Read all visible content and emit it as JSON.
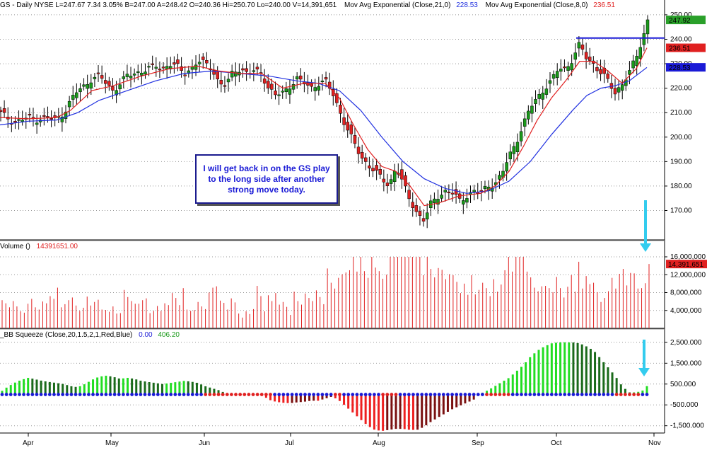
{
  "header": {
    "price_text": "GS - Daily  NYSE  L=247.67  7.34  3.05%  B=247.00  A=248.42  O=240.36  Hi=250.70  Lo=240.00  V=14,391,651",
    "ema21_label": "Mov Avg Exponential (Close,21,0)",
    "ema21_value": "228.53",
    "ema8_label": "Mov Avg Exponential (Close,8,0)",
    "ema8_value": "236.51"
  },
  "volume_header": {
    "label": "Volume ()",
    "value": "14391651.00"
  },
  "squeeze_header": {
    "label": "_BB Squeeze (Close,20,1.5,2,1,Red,Blue)",
    "value1": "0.00",
    "value2": "406.20"
  },
  "note": "I will get back in on the GS play to the long side after another strong move today.",
  "colors": {
    "up": "#1a9a1a",
    "down": "#e02020",
    "ema8": "#e02020",
    "ema21": "#2030e0",
    "squeeze_on": "#e02020",
    "squeeze_off": "#1a1ad6",
    "arrow": "#33ccee"
  },
  "chart_data": [
    {
      "type": "candlestick",
      "title": "GS - Daily NYSE",
      "x_labels": [
        "Apr",
        "May",
        "Jun",
        "Jul",
        "Aug",
        "Sep",
        "Oct",
        "Nov"
      ],
      "ylim": [
        158,
        252
      ],
      "y_ticks": [
        "250.00",
        "240.00",
        "230.00",
        "220.00",
        "210.00",
        "200.00",
        "190.00",
        "180.00",
        "170.00"
      ],
      "horizontal_line": 240.5,
      "last_price": "247.92",
      "series": [
        {
          "name": "Mov Avg Exponential (Close,8,0)",
          "last": "236.51"
        },
        {
          "name": "Mov Avg Exponential (Close,21,0)",
          "last": "228.53"
        }
      ],
      "close_path": [
        [
          0,
          210
        ],
        [
          10,
          208
        ],
        [
          20,
          206
        ],
        [
          30,
          207
        ],
        [
          40,
          208
        ],
        [
          50,
          207
        ],
        [
          60,
          208
        ],
        [
          70,
          208
        ],
        [
          80,
          207
        ],
        [
          90,
          210
        ],
        [
          100,
          215
        ],
        [
          110,
          219
        ],
        [
          120,
          221
        ],
        [
          130,
          224
        ],
        [
          140,
          225
        ],
        [
          150,
          222
        ],
        [
          160,
          219
        ],
        [
          170,
          222
        ],
        [
          180,
          225
        ],
        [
          190,
          226
        ],
        [
          200,
          227
        ],
        [
          210,
          228
        ],
        [
          220,
          229
        ],
        [
          230,
          228
        ],
        [
          240,
          230
        ],
        [
          250,
          229
        ],
        [
          260,
          226
        ],
        [
          270,
          228
        ],
        [
          280,
          231
        ],
        [
          290,
          230
        ],
        [
          300,
          228
        ],
        [
          310,
          222
        ],
        [
          320,
          221
        ],
        [
          330,
          227
        ],
        [
          340,
          228
        ],
        [
          350,
          226
        ],
        [
          360,
          227
        ],
        [
          370,
          226
        ],
        [
          380,
          220
        ],
        [
          390,
          217
        ],
        [
          400,
          218
        ],
        [
          410,
          221
        ],
        [
          420,
          224
        ],
        [
          430,
          222
        ],
        [
          440,
          220
        ],
        [
          450,
          222
        ],
        [
          460,
          223
        ],
        [
          470,
          218
        ],
        [
          480,
          211
        ],
        [
          490,
          204
        ],
        [
          500,
          198
        ],
        [
          510,
          192
        ],
        [
          520,
          189
        ],
        [
          530,
          186
        ],
        [
          540,
          183
        ],
        [
          550,
          180
        ],
        [
          560,
          188
        ],
        [
          570,
          181
        ],
        [
          580,
          174
        ],
        [
          590,
          169
        ],
        [
          600,
          166
        ],
        [
          610,
          173
        ],
        [
          620,
          176
        ],
        [
          630,
          178
        ],
        [
          640,
          177
        ],
        [
          650,
          174
        ],
        [
          660,
          176
        ],
        [
          670,
          178
        ],
        [
          680,
          177
        ],
        [
          690,
          180
        ],
        [
          700,
          181
        ],
        [
          710,
          185
        ],
        [
          720,
          192
        ],
        [
          730,
          198
        ],
        [
          740,
          205
        ],
        [
          750,
          212
        ],
        [
          760,
          216
        ],
        [
          770,
          220
        ],
        [
          780,
          223
        ],
        [
          790,
          228
        ],
        [
          800,
          228
        ],
        [
          810,
          232
        ],
        [
          820,
          238
        ],
        [
          830,
          232
        ],
        [
          840,
          230
        ],
        [
          850,
          226
        ],
        [
          860,
          223
        ],
        [
          870,
          218
        ],
        [
          880,
          222
        ],
        [
          890,
          226
        ],
        [
          900,
          233
        ],
        [
          910,
          241
        ],
        [
          915,
          248
        ]
      ],
      "ema8_path": [
        [
          0,
          208
        ],
        [
          40,
          207.5
        ],
        [
          80,
          208
        ],
        [
          100,
          211
        ],
        [
          130,
          219
        ],
        [
          160,
          221
        ],
        [
          200,
          225
        ],
        [
          240,
          228
        ],
        [
          280,
          229
        ],
        [
          310,
          227
        ],
        [
          340,
          226
        ],
        [
          370,
          226
        ],
        [
          400,
          220
        ],
        [
          430,
          222
        ],
        [
          460,
          222
        ],
        [
          480,
          216
        ],
        [
          500,
          205
        ],
        [
          520,
          195
        ],
        [
          540,
          188
        ],
        [
          560,
          186
        ],
        [
          580,
          180
        ],
        [
          600,
          172
        ],
        [
          620,
          173
        ],
        [
          650,
          176
        ],
        [
          680,
          177
        ],
        [
          700,
          180
        ],
        [
          720,
          186
        ],
        [
          740,
          196
        ],
        [
          760,
          207
        ],
        [
          780,
          216
        ],
        [
          800,
          223
        ],
        [
          820,
          231
        ],
        [
          840,
          231
        ],
        [
          860,
          227
        ],
        [
          880,
          222
        ],
        [
          900,
          228
        ],
        [
          915,
          236.5
        ]
      ],
      "ema21_path": [
        [
          0,
          205
        ],
        [
          40,
          206.5
        ],
        [
          80,
          207
        ],
        [
          110,
          210
        ],
        [
          140,
          215
        ],
        [
          180,
          219
        ],
        [
          220,
          223
        ],
        [
          260,
          226
        ],
        [
          300,
          227
        ],
        [
          340,
          226
        ],
        [
          380,
          225
        ],
        [
          420,
          223
        ],
        [
          450,
          222
        ],
        [
          480,
          219
        ],
        [
          510,
          211
        ],
        [
          540,
          200
        ],
        [
          570,
          190
        ],
        [
          600,
          183
        ],
        [
          630,
          179
        ],
        [
          660,
          177
        ],
        [
          690,
          178
        ],
        [
          720,
          182
        ],
        [
          750,
          190
        ],
        [
          780,
          201
        ],
        [
          810,
          211
        ],
        [
          830,
          217
        ],
        [
          850,
          220
        ],
        [
          870,
          221
        ],
        [
          890,
          223
        ],
        [
          915,
          228.5
        ]
      ]
    },
    {
      "type": "bar",
      "title": "Volume ()",
      "ylim": [
        0,
        16000000
      ],
      "y_ticks": [
        "16,000,000",
        "12,000,000",
        "8,000,000",
        "4,000,000"
      ],
      "last_value": "14,391,651",
      "values_millions": [
        6.3,
        5.6,
        4.7,
        6.1,
        4.9,
        3.8,
        3.5,
        5.5,
        6.6,
        4.7,
        4.2,
        6.0,
        5.6,
        7.2,
        6.6,
        9.1,
        4.7,
        5.4,
        6.3,
        6.9,
        5.1,
        3.9,
        4.6,
        7.1,
        5.1,
        5.9,
        6.4,
        4.2,
        4.1,
        3.7,
        4.9,
        3.3,
        3.4,
        8.6,
        7.0,
        6.1,
        5.5,
        5.5,
        6.3,
        6.7,
        3.4,
        3.9,
        5.0,
        3.9,
        5.6,
        5.2,
        7.9,
        6.8,
        5.2,
        9.0,
        4.2,
        3.9,
        4.1,
        5.9,
        4.9,
        4.3,
        8.0,
        9.1,
        9.4,
        6.2,
        5.7,
        4.2,
        6.7,
        5.8,
        3.3,
        2.4,
        3.8,
        3.2,
        4.3,
        9.5,
        7.2,
        3.8,
        7.4,
        6.1,
        7.9,
        5.3,
        5.9,
        4.8,
        3.0,
        8.2,
        6.1,
        5.3,
        7.8,
        6.8,
        6.1,
        8.5,
        7.0,
        5.4,
        13.4,
        10.2,
        8.9,
        11.3,
        12.1,
        12.5,
        13.0,
        16.0,
        12.7,
        16.0,
        12.8,
        11.3,
        16.0,
        13.6,
        12.8,
        11.1,
        12.0,
        16.0,
        16.0,
        16.0,
        16.0,
        16.0,
        16.0,
        16.0,
        16.0,
        16.0,
        11.9,
        16.0,
        13.3,
        11.4,
        13.5,
        13.1,
        11.0,
        12.1,
        11.9,
        10.4,
        7.9,
        10.0,
        7.5,
        11.9,
        7.6,
        8.6,
        10.2,
        9.0,
        7.2,
        11.0,
        8.2,
        9.8,
        13.0,
        16.0,
        12.7,
        16.0,
        16.0,
        16.0,
        12.7,
        11.4,
        9.1,
        8.3,
        9.4,
        9.5,
        9.0,
        8.1,
        11.5,
        9.0,
        6.9,
        9.3,
        11.9,
        8.2,
        14.9,
        8.9,
        11.7,
        9.9,
        10.2,
        8.1,
        5.9,
        6.8,
        8.3,
        11.3,
        8.9,
        12.2,
        13.3,
        9.6,
        12.4,
        12.3,
        8.9,
        9.0,
        10.1,
        14.4
      ]
    },
    {
      "type": "bar",
      "title": "_BB Squeeze (Close,20,1.5,2,1,Red,Blue)",
      "ylim": [
        -1850,
        2700
      ],
      "y_ticks": [
        "2,500.000",
        "1,500.000",
        "500.000",
        "-500.000",
        "-1,500.000"
      ],
      "momentum_path": [
        [
          0,
          100
        ],
        [
          10,
          350
        ],
        [
          20,
          550
        ],
        [
          30,
          700
        ],
        [
          40,
          800
        ],
        [
          50,
          730
        ],
        [
          60,
          650
        ],
        [
          70,
          600
        ],
        [
          80,
          550
        ],
        [
          90,
          500
        ],
        [
          100,
          400
        ],
        [
          110,
          350
        ],
        [
          120,
          500
        ],
        [
          130,
          700
        ],
        [
          140,
          850
        ],
        [
          150,
          900
        ],
        [
          160,
          850
        ],
        [
          170,
          750
        ],
        [
          180,
          800
        ],
        [
          190,
          750
        ],
        [
          200,
          650
        ],
        [
          210,
          600
        ],
        [
          220,
          550
        ],
        [
          230,
          500
        ],
        [
          240,
          550
        ],
        [
          250,
          600
        ],
        [
          260,
          650
        ],
        [
          270,
          620
        ],
        [
          280,
          550
        ],
        [
          290,
          400
        ],
        [
          300,
          300
        ],
        [
          310,
          200
        ],
        [
          320,
          50
        ],
        [
          330,
          0
        ],
        [
          340,
          0
        ],
        [
          350,
          0
        ],
        [
          360,
          0
        ],
        [
          370,
          0
        ],
        [
          380,
          -250
        ],
        [
          390,
          -350
        ],
        [
          400,
          -400
        ],
        [
          410,
          -420
        ],
        [
          420,
          -380
        ],
        [
          430,
          -350
        ],
        [
          440,
          -300
        ],
        [
          450,
          -300
        ],
        [
          460,
          -200
        ],
        [
          470,
          -100
        ],
        [
          480,
          -300
        ],
        [
          490,
          -600
        ],
        [
          500,
          -900
        ],
        [
          510,
          -1200
        ],
        [
          520,
          -1500
        ],
        [
          530,
          -1700
        ],
        [
          540,
          -1750
        ],
        [
          550,
          -1700
        ],
        [
          560,
          -1650
        ],
        [
          570,
          -1650
        ],
        [
          580,
          -1700
        ],
        [
          590,
          -1700
        ],
        [
          600,
          -1550
        ],
        [
          610,
          -1300
        ],
        [
          620,
          -1100
        ],
        [
          630,
          -900
        ],
        [
          640,
          -700
        ],
        [
          650,
          -550
        ],
        [
          660,
          -400
        ],
        [
          670,
          -250
        ],
        [
          680,
          50
        ],
        [
          690,
          200
        ],
        [
          700,
          400
        ],
        [
          710,
          600
        ],
        [
          720,
          800
        ],
        [
          730,
          1100
        ],
        [
          740,
          1400
        ],
        [
          750,
          1800
        ],
        [
          760,
          2100
        ],
        [
          770,
          2300
        ],
        [
          780,
          2450
        ],
        [
          790,
          2500
        ],
        [
          800,
          2500
        ],
        [
          810,
          2500
        ],
        [
          820,
          2450
        ],
        [
          830,
          2300
        ],
        [
          840,
          2100
        ],
        [
          850,
          1700
        ],
        [
          860,
          1300
        ],
        [
          870,
          900
        ],
        [
          880,
          400
        ],
        [
          890,
          100
        ],
        [
          900,
          100
        ],
        [
          910,
          200
        ],
        [
          915,
          400
        ]
      ]
    }
  ],
  "date_ticks": [
    "Apr",
    "May",
    "Jun",
    "Jul",
    "Aug",
    "Sep",
    "Oct",
    "Nov"
  ]
}
